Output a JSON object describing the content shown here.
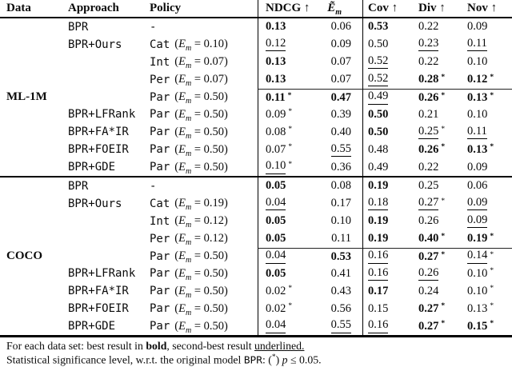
{
  "table": {
    "header": {
      "data": "Data",
      "approach": "Approach",
      "policy": "Policy",
      "ndcg": "NDCG ↑",
      "em_base": "Ẽ",
      "em_sub": "m",
      "cov": "Cov ↑",
      "div": "Div ↑",
      "nov": "Nov ↑"
    },
    "em_notation": {
      "open": "(",
      "var": "E",
      "sub": "m",
      "eq": " = ",
      "close": ")"
    },
    "sections": [
      {
        "data_label": "ML-1M",
        "label_row": 4,
        "cline_row": 4,
        "rows": [
          {
            "approach": "BPR",
            "policy": {
              "code": "-"
            },
            "ndcg": {
              "v": "0.13",
              "b": true
            },
            "em": {
              "v": "0.06"
            },
            "cov": {
              "v": "0.53",
              "b": true
            },
            "div": {
              "v": "0.22"
            },
            "nov": {
              "v": "0.09"
            }
          },
          {
            "approach": "BPR+Ours",
            "policy": {
              "code": "Cat",
              "em": "0.10"
            },
            "ndcg": {
              "v": "0.12",
              "u": true
            },
            "em": {
              "v": "0.09"
            },
            "cov": {
              "v": "0.50"
            },
            "div": {
              "v": "0.23",
              "u": true
            },
            "nov": {
              "v": "0.11",
              "u": true
            }
          },
          {
            "approach": "",
            "policy": {
              "code": "Int",
              "em": "0.07"
            },
            "ndcg": {
              "v": "0.13",
              "b": true
            },
            "em": {
              "v": "0.07"
            },
            "cov": {
              "v": "0.52",
              "u": true
            },
            "div": {
              "v": "0.22"
            },
            "nov": {
              "v": "0.10"
            }
          },
          {
            "approach": "",
            "policy": {
              "code": "Per",
              "em": "0.07"
            },
            "ndcg": {
              "v": "0.13",
              "b": true
            },
            "em": {
              "v": "0.07"
            },
            "cov": {
              "v": "0.52",
              "u": true
            },
            "div": {
              "v": "0.28",
              "b": true,
              "s": true
            },
            "nov": {
              "v": "0.12",
              "b": true,
              "s": true
            }
          },
          {
            "approach": "",
            "policy": {
              "code": "Par",
              "em": "0.50"
            },
            "ndcg": {
              "v": "0.11",
              "b": true,
              "s": true
            },
            "em": {
              "v": "0.47",
              "b": true
            },
            "cov": {
              "v": "0.49",
              "u": true
            },
            "div": {
              "v": "0.26",
              "b": true,
              "s": true
            },
            "nov": {
              "v": "0.13",
              "b": true,
              "s": true
            }
          },
          {
            "approach": "BPR+LFRank",
            "policy": {
              "code": "Par",
              "em": "0.50"
            },
            "ndcg": {
              "v": "0.09",
              "s": true
            },
            "em": {
              "v": "0.39"
            },
            "cov": {
              "v": "0.50",
              "b": true
            },
            "div": {
              "v": "0.21"
            },
            "nov": {
              "v": "0.10"
            }
          },
          {
            "approach": "BPR+FA*IR",
            "policy": {
              "code": "Par",
              "em": "0.50"
            },
            "ndcg": {
              "v": "0.08",
              "s": true
            },
            "em": {
              "v": "0.40"
            },
            "cov": {
              "v": "0.50",
              "b": true
            },
            "div": {
              "v": "0.25",
              "u": true,
              "s": true
            },
            "nov": {
              "v": "0.11",
              "u": true
            }
          },
          {
            "approach": "BPR+FOEIR",
            "policy": {
              "code": "Par",
              "em": "0.50"
            },
            "ndcg": {
              "v": "0.07",
              "s": true
            },
            "em": {
              "v": "0.55",
              "u": true
            },
            "cov": {
              "v": "0.48"
            },
            "div": {
              "v": "0.26",
              "b": true,
              "s": true
            },
            "nov": {
              "v": "0.13",
              "b": true,
              "s": true
            }
          },
          {
            "approach": "BPR+GDE",
            "policy": {
              "code": "Par",
              "em": "0.50"
            },
            "ndcg": {
              "v": "0.10",
              "u": true,
              "s": true
            },
            "em": {
              "v": "0.36"
            },
            "cov": {
              "v": "0.49"
            },
            "div": {
              "v": "0.22"
            },
            "nov": {
              "v": "0.09"
            }
          }
        ]
      },
      {
        "data_label": "COCO",
        "label_row": 4,
        "cline_row": 4,
        "rows": [
          {
            "approach": "BPR",
            "policy": {
              "code": "-"
            },
            "ndcg": {
              "v": "0.05",
              "b": true
            },
            "em": {
              "v": "0.08"
            },
            "cov": {
              "v": "0.19",
              "b": true
            },
            "div": {
              "v": "0.25"
            },
            "nov": {
              "v": "0.06"
            }
          },
          {
            "approach": "BPR+Ours",
            "policy": {
              "code": "Cat",
              "em": "0.19"
            },
            "ndcg": {
              "v": "0.04",
              "u": true
            },
            "em": {
              "v": "0.17"
            },
            "cov": {
              "v": "0.18",
              "u": true
            },
            "div": {
              "v": "0.27",
              "u": true,
              "s": true
            },
            "nov": {
              "v": "0.09",
              "u": true
            }
          },
          {
            "approach": "",
            "policy": {
              "code": "Int",
              "em": "0.12"
            },
            "ndcg": {
              "v": "0.05",
              "b": true
            },
            "em": {
              "v": "0.10"
            },
            "cov": {
              "v": "0.19",
              "b": true
            },
            "div": {
              "v": "0.26"
            },
            "nov": {
              "v": "0.09",
              "u": true
            }
          },
          {
            "approach": "",
            "policy": {
              "code": "Per",
              "em": "0.12"
            },
            "ndcg": {
              "v": "0.05",
              "b": true
            },
            "em": {
              "v": "0.11"
            },
            "cov": {
              "v": "0.19",
              "b": true
            },
            "div": {
              "v": "0.40",
              "b": true,
              "s": true
            },
            "nov": {
              "v": "0.19",
              "b": true,
              "s": true
            }
          },
          {
            "approach": "",
            "policy": {
              "code": "Par",
              "em": "0.50"
            },
            "ndcg": {
              "v": "0.04",
              "u": true
            },
            "em": {
              "v": "0.53",
              "b": true
            },
            "cov": {
              "v": "0.16",
              "u": true
            },
            "div": {
              "v": "0.27",
              "b": true,
              "s": true
            },
            "nov": {
              "v": "0.14",
              "u": true,
              "s": true
            }
          },
          {
            "approach": "BPR+LFRank",
            "policy": {
              "code": "Par",
              "em": "0.50"
            },
            "ndcg": {
              "v": "0.05",
              "b": true
            },
            "em": {
              "v": "0.41"
            },
            "cov": {
              "v": "0.16",
              "u": true
            },
            "div": {
              "v": "0.26",
              "u": true
            },
            "nov": {
              "v": "0.10",
              "s": true
            }
          },
          {
            "approach": "BPR+FA*IR",
            "policy": {
              "code": "Par",
              "em": "0.50"
            },
            "ndcg": {
              "v": "0.02",
              "s": true
            },
            "em": {
              "v": "0.43"
            },
            "cov": {
              "v": "0.17",
              "b": true
            },
            "div": {
              "v": "0.24"
            },
            "nov": {
              "v": "0.10",
              "s": true
            }
          },
          {
            "approach": "BPR+FOEIR",
            "policy": {
              "code": "Par",
              "em": "0.50"
            },
            "ndcg": {
              "v": "0.02",
              "s": true
            },
            "em": {
              "v": "0.56"
            },
            "cov": {
              "v": "0.15"
            },
            "div": {
              "v": "0.27",
              "b": true,
              "s": true
            },
            "nov": {
              "v": "0.13",
              "s": true
            }
          },
          {
            "approach": "BPR+GDE",
            "policy": {
              "code": "Par",
              "em": "0.50"
            },
            "ndcg": {
              "v": "0.04",
              "u": true
            },
            "em": {
              "v": "0.55",
              "u": true
            },
            "cov": {
              "v": "0.16",
              "u": true
            },
            "div": {
              "v": "0.27",
              "b": true,
              "s": true
            },
            "nov": {
              "v": "0.15",
              "b": true,
              "s": true
            }
          }
        ]
      }
    ]
  },
  "footnotes": [
    {
      "segments": [
        {
          "t": "For each data set: best result in "
        },
        {
          "t": "bold",
          "style": "bold"
        },
        {
          "t": ", second-best result "
        },
        {
          "t": "underlined.",
          "style": "underline"
        }
      ]
    },
    {
      "segments": [
        {
          "t": "Statistical significance level, w.r.t. the original model "
        },
        {
          "t": "BPR",
          "style": "mono"
        },
        {
          "t": ": ("
        },
        {
          "t": "*",
          "style": "sup"
        },
        {
          "t": ") "
        },
        {
          "t": "p",
          "style": "italic"
        },
        {
          "t": " ≤ 0.05."
        }
      ]
    }
  ]
}
